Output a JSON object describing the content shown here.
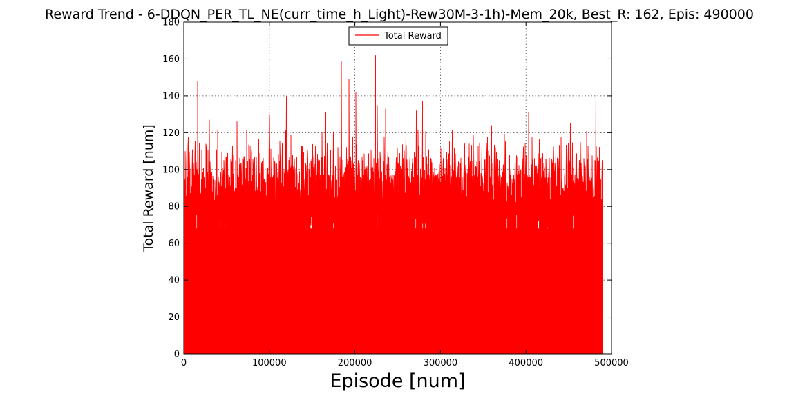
{
  "chart_data": {
    "type": "line",
    "title": "Reward Trend - 6-DDQN_PER_TL_NE(curr_time_h_Light)-Rew30M-3-1h)-Mem_20k, Best_R: 162, Epis: 490000",
    "xlabel": "Episode [num]",
    "ylabel": "Total Reward [num]",
    "xlim": [
      0,
      500000
    ],
    "ylim": [
      0,
      180
    ],
    "xticks": [
      0,
      100000,
      200000,
      300000,
      400000,
      500000
    ],
    "yticks": [
      0,
      20,
      40,
      60,
      80,
      100,
      120,
      140,
      160,
      180
    ],
    "grid": true,
    "legend": {
      "placement": "top-center"
    },
    "series": [
      {
        "name": "Total Reward",
        "color": "#ff0000",
        "x_range": [
          0,
          490000
        ],
        "peaks": [
          {
            "x": 16000,
            "y": 148
          },
          {
            "x": 30000,
            "y": 127
          },
          {
            "x": 62000,
            "y": 126
          },
          {
            "x": 100000,
            "y": 130
          },
          {
            "x": 120000,
            "y": 140
          },
          {
            "x": 166000,
            "y": 131
          },
          {
            "x": 184000,
            "y": 159
          },
          {
            "x": 193000,
            "y": 149
          },
          {
            "x": 201000,
            "y": 142
          },
          {
            "x": 224000,
            "y": 162
          },
          {
            "x": 226000,
            "y": 135
          },
          {
            "x": 236000,
            "y": 133
          },
          {
            "x": 272000,
            "y": 132
          },
          {
            "x": 279000,
            "y": 137
          },
          {
            "x": 360000,
            "y": 124
          },
          {
            "x": 403000,
            "y": 131
          },
          {
            "x": 452000,
            "y": 125
          },
          {
            "x": 482000,
            "y": 149
          }
        ],
        "typical_high_range": [
          100,
          120
        ],
        "typical_low": 70,
        "final_value": 54
      }
    ]
  }
}
